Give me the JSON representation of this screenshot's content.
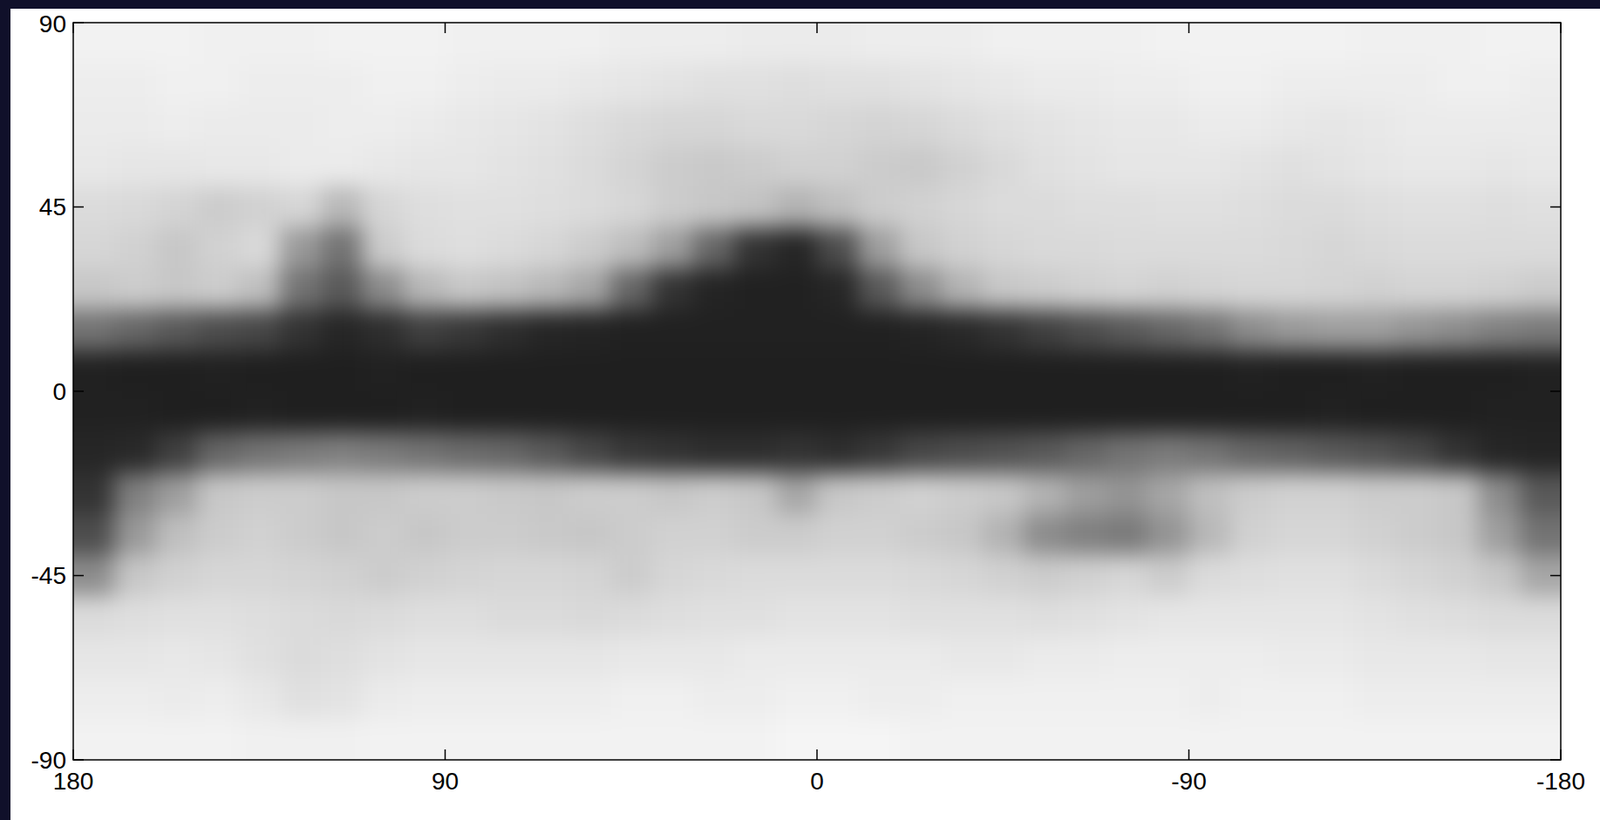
{
  "chart_data": {
    "type": "heatmap",
    "xlim": [
      180,
      -180
    ],
    "ylim": [
      -90,
      90
    ],
    "xticks": [
      180,
      90,
      0,
      -90,
      -180
    ],
    "yticks": [
      90,
      45,
      0,
      -45,
      -90
    ],
    "grid": false,
    "cells": [
      [
        0.95,
        0.95,
        0.95,
        0.94,
        0.94,
        0.94,
        0.95,
        0.95,
        0.95,
        0.94,
        0.94,
        0.94,
        0.94,
        0.93,
        0.93,
        0.93,
        0.92,
        0.92,
        0.92,
        0.93,
        0.93,
        0.93,
        0.94,
        0.94,
        0.94,
        0.94,
        0.95,
        0.95,
        0.95,
        0.95,
        0.95,
        0.94,
        0.94,
        0.94,
        0.95,
        0.95
      ],
      [
        0.93,
        0.93,
        0.94,
        0.94,
        0.93,
        0.93,
        0.93,
        0.94,
        0.94,
        0.93,
        0.92,
        0.92,
        0.91,
        0.9,
        0.89,
        0.88,
        0.88,
        0.87,
        0.88,
        0.88,
        0.89,
        0.9,
        0.91,
        0.92,
        0.92,
        0.93,
        0.93,
        0.94,
        0.94,
        0.93,
        0.93,
        0.93,
        0.93,
        0.94,
        0.94,
        0.93
      ],
      [
        0.92,
        0.92,
        0.93,
        0.92,
        0.92,
        0.92,
        0.93,
        0.93,
        0.92,
        0.91,
        0.9,
        0.89,
        0.87,
        0.85,
        0.84,
        0.84,
        0.85,
        0.85,
        0.84,
        0.83,
        0.84,
        0.86,
        0.88,
        0.89,
        0.9,
        0.91,
        0.91,
        0.92,
        0.92,
        0.91,
        0.9,
        0.91,
        0.92,
        0.92,
        0.92,
        0.92
      ],
      [
        0.91,
        0.9,
        0.9,
        0.91,
        0.91,
        0.92,
        0.92,
        0.91,
        0.9,
        0.9,
        0.89,
        0.88,
        0.86,
        0.83,
        0.8,
        0.79,
        0.8,
        0.82,
        0.82,
        0.8,
        0.79,
        0.82,
        0.85,
        0.88,
        0.89,
        0.9,
        0.9,
        0.9,
        0.89,
        0.88,
        0.89,
        0.9,
        0.91,
        0.91,
        0.9,
        0.91
      ],
      [
        0.86,
        0.85,
        0.83,
        0.8,
        0.82,
        0.84,
        0.72,
        0.84,
        0.87,
        0.88,
        0.88,
        0.87,
        0.86,
        0.84,
        0.8,
        0.78,
        0.76,
        0.7,
        0.75,
        0.8,
        0.82,
        0.84,
        0.86,
        0.86,
        0.87,
        0.87,
        0.88,
        0.88,
        0.87,
        0.86,
        0.86,
        0.87,
        0.88,
        0.88,
        0.87,
        0.88
      ],
      [
        0.84,
        0.82,
        0.78,
        0.82,
        0.85,
        0.6,
        0.45,
        0.8,
        0.86,
        0.87,
        0.86,
        0.84,
        0.8,
        0.74,
        0.62,
        0.4,
        0.2,
        0.15,
        0.3,
        0.62,
        0.78,
        0.82,
        0.84,
        0.85,
        0.85,
        0.86,
        0.86,
        0.86,
        0.86,
        0.85,
        0.84,
        0.85,
        0.86,
        0.86,
        0.86,
        0.86
      ],
      [
        0.78,
        0.8,
        0.78,
        0.8,
        0.75,
        0.45,
        0.35,
        0.55,
        0.72,
        0.78,
        0.76,
        0.72,
        0.65,
        0.4,
        0.2,
        0.14,
        0.13,
        0.13,
        0.15,
        0.35,
        0.55,
        0.7,
        0.78,
        0.8,
        0.82,
        0.83,
        0.82,
        0.83,
        0.84,
        0.84,
        0.83,
        0.82,
        0.83,
        0.83,
        0.82,
        0.8
      ],
      [
        0.45,
        0.4,
        0.35,
        0.3,
        0.28,
        0.2,
        0.15,
        0.18,
        0.25,
        0.22,
        0.18,
        0.15,
        0.14,
        0.13,
        0.13,
        0.13,
        0.13,
        0.13,
        0.13,
        0.13,
        0.14,
        0.16,
        0.2,
        0.25,
        0.3,
        0.35,
        0.4,
        0.45,
        0.55,
        0.6,
        0.62,
        0.62,
        0.58,
        0.55,
        0.5,
        0.48
      ],
      [
        0.13,
        0.12,
        0.12,
        0.13,
        0.12,
        0.12,
        0.12,
        0.13,
        0.12,
        0.12,
        0.12,
        0.12,
        0.12,
        0.12,
        0.12,
        0.12,
        0.12,
        0.12,
        0.12,
        0.12,
        0.12,
        0.12,
        0.12,
        0.12,
        0.12,
        0.12,
        0.12,
        0.12,
        0.13,
        0.12,
        0.12,
        0.13,
        0.12,
        0.12,
        0.12,
        0.13
      ],
      [
        0.13,
        0.13,
        0.12,
        0.12,
        0.13,
        0.12,
        0.12,
        0.12,
        0.13,
        0.12,
        0.12,
        0.12,
        0.12,
        0.12,
        0.12,
        0.12,
        0.12,
        0.12,
        0.12,
        0.12,
        0.12,
        0.12,
        0.12,
        0.12,
        0.12,
        0.12,
        0.12,
        0.12,
        0.12,
        0.12,
        0.13,
        0.12,
        0.12,
        0.12,
        0.13,
        0.13
      ],
      [
        0.15,
        0.16,
        0.25,
        0.4,
        0.45,
        0.48,
        0.5,
        0.48,
        0.45,
        0.42,
        0.4,
        0.35,
        0.28,
        0.22,
        0.2,
        0.18,
        0.18,
        0.2,
        0.18,
        0.22,
        0.28,
        0.3,
        0.32,
        0.35,
        0.4,
        0.45,
        0.48,
        0.45,
        0.4,
        0.38,
        0.35,
        0.32,
        0.28,
        0.2,
        0.15,
        0.14
      ],
      [
        0.2,
        0.5,
        0.62,
        0.78,
        0.8,
        0.8,
        0.78,
        0.78,
        0.8,
        0.8,
        0.79,
        0.78,
        0.8,
        0.8,
        0.78,
        0.8,
        0.78,
        0.65,
        0.78,
        0.8,
        0.82,
        0.8,
        0.78,
        0.7,
        0.62,
        0.58,
        0.65,
        0.75,
        0.8,
        0.82,
        0.82,
        0.8,
        0.8,
        0.78,
        0.55,
        0.35
      ],
      [
        0.3,
        0.6,
        0.75,
        0.8,
        0.82,
        0.8,
        0.78,
        0.8,
        0.78,
        0.8,
        0.8,
        0.79,
        0.78,
        0.8,
        0.82,
        0.82,
        0.8,
        0.8,
        0.82,
        0.82,
        0.8,
        0.78,
        0.7,
        0.55,
        0.5,
        0.48,
        0.58,
        0.72,
        0.82,
        0.84,
        0.84,
        0.82,
        0.8,
        0.78,
        0.62,
        0.45
      ],
      [
        0.55,
        0.78,
        0.82,
        0.84,
        0.84,
        0.83,
        0.82,
        0.8,
        0.82,
        0.83,
        0.84,
        0.84,
        0.83,
        0.8,
        0.84,
        0.85,
        0.86,
        0.86,
        0.86,
        0.86,
        0.85,
        0.84,
        0.82,
        0.8,
        0.82,
        0.84,
        0.8,
        0.86,
        0.87,
        0.88,
        0.88,
        0.86,
        0.84,
        0.82,
        0.78,
        0.65
      ],
      [
        0.86,
        0.87,
        0.88,
        0.88,
        0.87,
        0.86,
        0.85,
        0.86,
        0.87,
        0.87,
        0.86,
        0.86,
        0.85,
        0.86,
        0.87,
        0.88,
        0.88,
        0.89,
        0.89,
        0.89,
        0.88,
        0.88,
        0.88,
        0.87,
        0.88,
        0.89,
        0.9,
        0.9,
        0.9,
        0.9,
        0.9,
        0.89,
        0.88,
        0.87,
        0.86,
        0.86
      ],
      [
        0.9,
        0.9,
        0.91,
        0.9,
        0.88,
        0.86,
        0.87,
        0.89,
        0.9,
        0.9,
        0.9,
        0.9,
        0.9,
        0.91,
        0.91,
        0.91,
        0.92,
        0.92,
        0.92,
        0.92,
        0.92,
        0.91,
        0.91,
        0.92,
        0.92,
        0.93,
        0.93,
        0.93,
        0.93,
        0.92,
        0.92,
        0.91,
        0.91,
        0.91,
        0.9,
        0.9
      ],
      [
        0.93,
        0.93,
        0.92,
        0.93,
        0.91,
        0.88,
        0.89,
        0.92,
        0.93,
        0.93,
        0.93,
        0.93,
        0.93,
        0.94,
        0.94,
        0.93,
        0.93,
        0.94,
        0.94,
        0.93,
        0.93,
        0.94,
        0.94,
        0.94,
        0.94,
        0.94,
        0.94,
        0.93,
        0.94,
        0.94,
        0.94,
        0.93,
        0.93,
        0.93,
        0.93,
        0.93
      ],
      [
        0.95,
        0.95,
        0.95,
        0.95,
        0.94,
        0.94,
        0.94,
        0.95,
        0.95,
        0.95,
        0.95,
        0.95,
        0.95,
        0.95,
        0.95,
        0.95,
        0.95,
        0.96,
        0.96,
        0.96,
        0.95,
        0.95,
        0.95,
        0.95,
        0.95,
        0.95,
        0.95,
        0.95,
        0.95,
        0.95,
        0.95,
        0.95,
        0.95,
        0.95,
        0.95,
        0.95
      ]
    ]
  }
}
